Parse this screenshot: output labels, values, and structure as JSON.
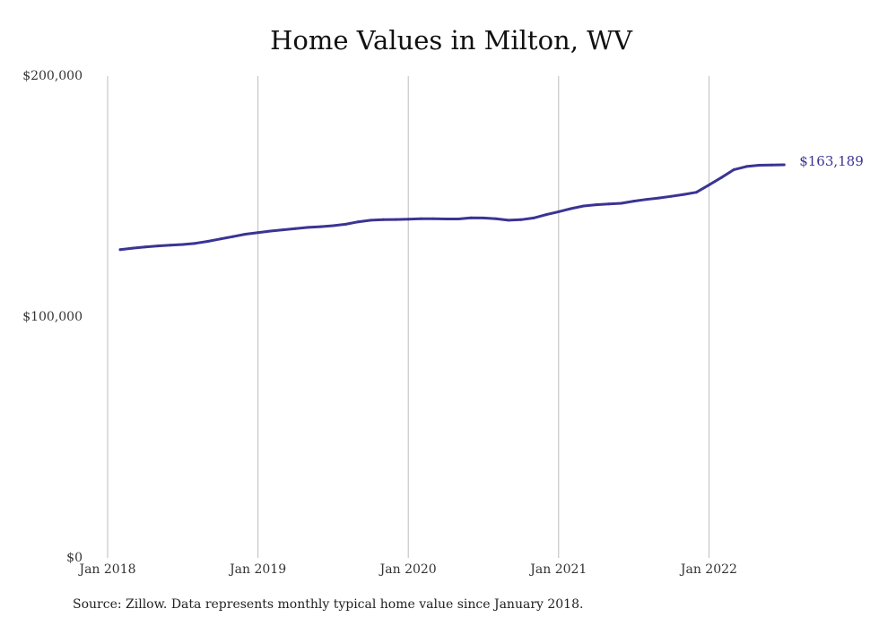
{
  "colors": {
    "line": "#3a3494",
    "grid": "#bdbdbd",
    "text": "#222222"
  },
  "chart_data": {
    "type": "line",
    "title": "Home Values in Milton, WV",
    "subtitle": "",
    "xlabel": "",
    "ylabel": "",
    "x_axis_type": "date",
    "ylim": [
      0,
      200000
    ],
    "xlim": [
      "2018-01",
      "2022-10"
    ],
    "y_ticks": [
      {
        "value": 0,
        "label": "$0"
      },
      {
        "value": 100000,
        "label": "$100,000"
      },
      {
        "value": 200000,
        "label": "$200,000"
      }
    ],
    "x_ticks": [
      {
        "value": "2018-01",
        "label": "Jan 2018"
      },
      {
        "value": "2019-01",
        "label": "Jan 2019"
      },
      {
        "value": "2020-01",
        "label": "Jan 2020"
      },
      {
        "value": "2021-01",
        "label": "Jan 2021"
      },
      {
        "value": "2022-01",
        "label": "Jan 2022"
      }
    ],
    "grid": {
      "vertical": true,
      "horizontal": false
    },
    "legend": "none",
    "series": [
      {
        "x": [
          "2018-02",
          "2018-03",
          "2018-04",
          "2018-05",
          "2018-06",
          "2018-07",
          "2018-08",
          "2018-09",
          "2018-10",
          "2018-11",
          "2018-12",
          "2019-01",
          "2019-02",
          "2019-03",
          "2019-04",
          "2019-05",
          "2019-06",
          "2019-07",
          "2019-08",
          "2019-09",
          "2019-10",
          "2019-11",
          "2019-12",
          "2020-01",
          "2020-02",
          "2020-03",
          "2020-04",
          "2020-05",
          "2020-06",
          "2020-07",
          "2020-08",
          "2020-09",
          "2020-10",
          "2020-11",
          "2020-12",
          "2021-01",
          "2021-02",
          "2021-03",
          "2021-04",
          "2021-05",
          "2021-06",
          "2021-07",
          "2021-08",
          "2021-09",
          "2021-10",
          "2021-11",
          "2021-12",
          "2022-01",
          "2022-02",
          "2022-03",
          "2022-04",
          "2022-05",
          "2022-06",
          "2022-07"
        ],
        "values": [
          128000,
          128600,
          129100,
          129500,
          129800,
          130100,
          130600,
          131400,
          132400,
          133400,
          134400,
          135000,
          135700,
          136200,
          136700,
          137200,
          137500,
          137900,
          138500,
          139500,
          140200,
          140400,
          140500,
          140600,
          140800,
          140800,
          140700,
          140700,
          141200,
          141100,
          140800,
          140200,
          140400,
          141100,
          142500,
          143700,
          145000,
          146100,
          146600,
          146900,
          147200,
          148100,
          148800,
          149400,
          150100,
          150900,
          151800,
          154800,
          157900,
          161200,
          162500,
          163000,
          163100,
          163189
        ]
      }
    ],
    "annotations": [
      {
        "x": "2022-07",
        "y": 163189,
        "text": "$163,189"
      }
    ]
  },
  "source_note": "Source: Zillow. Data represents monthly typical home value since January 2018."
}
